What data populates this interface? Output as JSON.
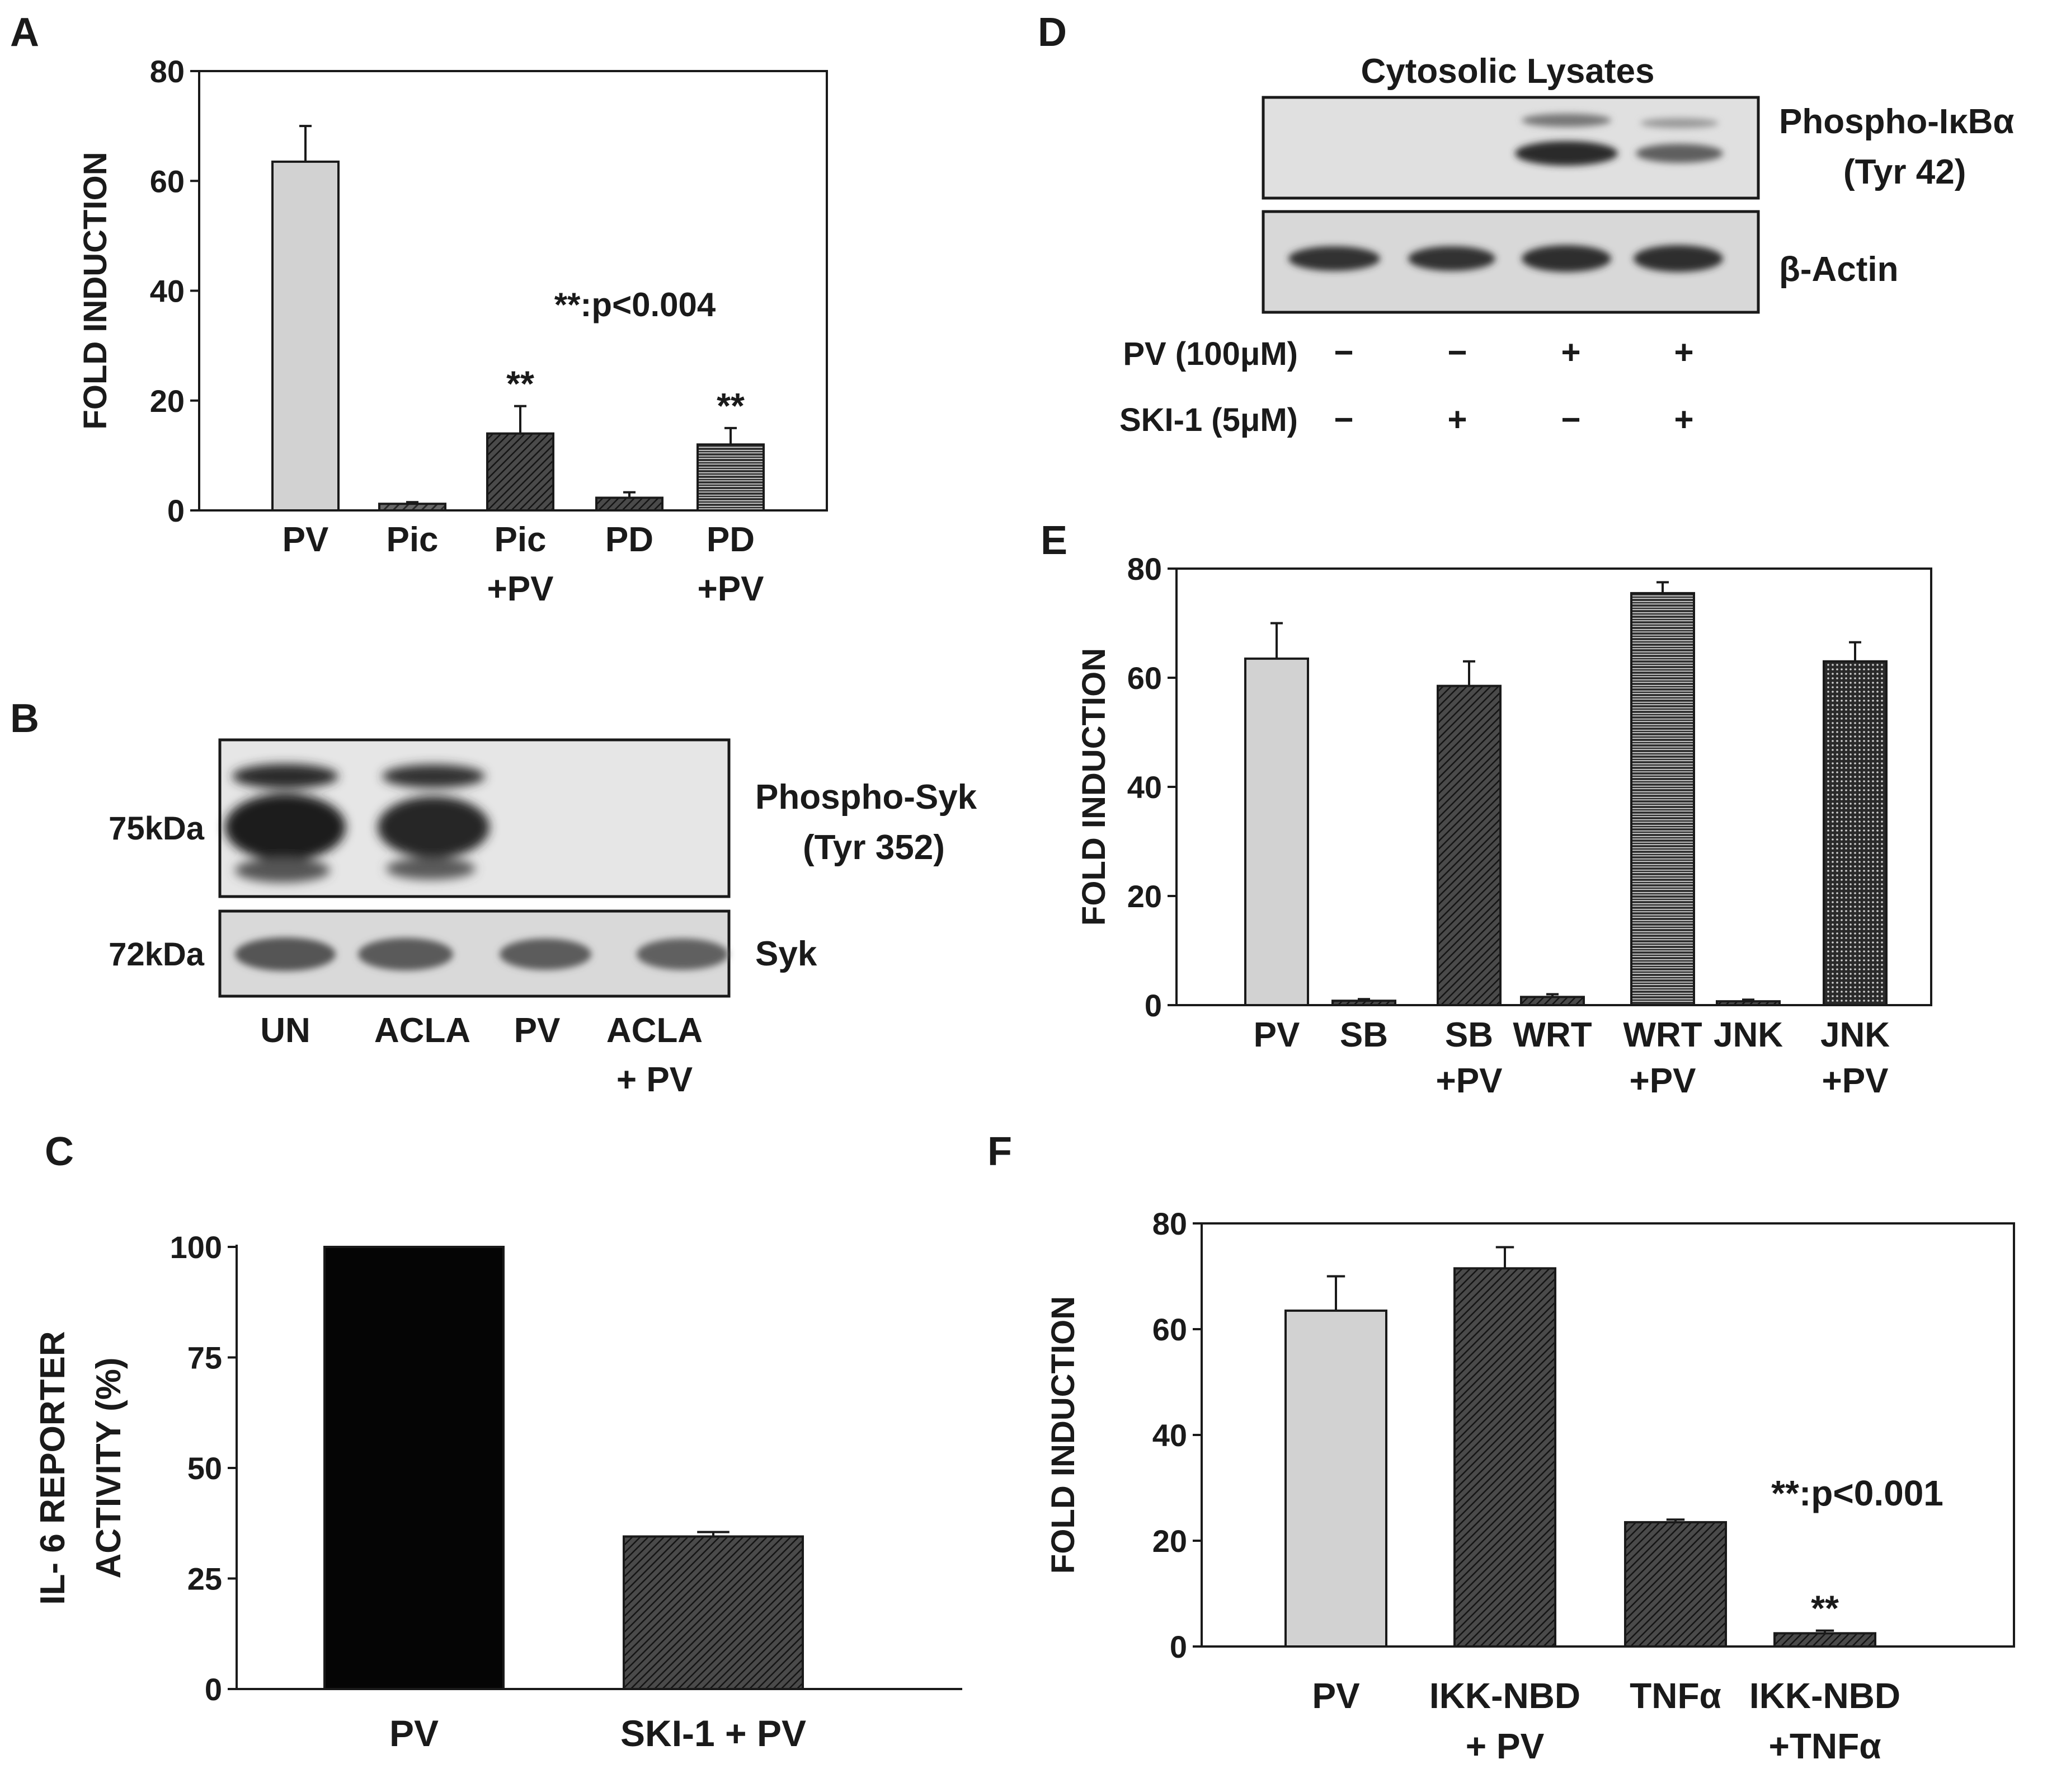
{
  "chart_data": [
    {
      "panel": "A",
      "type": "bar",
      "ylabel": "FOLD INDUCTION",
      "ylim": [
        0,
        80
      ],
      "yticks": [
        "0",
        "20",
        "40",
        "60",
        "80"
      ],
      "categories": [
        [
          "PV"
        ],
        [
          "Pic"
        ],
        [
          "Pic",
          "+PV"
        ],
        [
          "PD"
        ],
        [
          "PD",
          "+PV"
        ]
      ],
      "values": [
        63.5,
        1.2,
        14,
        2.3,
        12
      ],
      "errors": [
        6.5,
        0.3,
        5,
        1,
        3
      ],
      "fills": [
        "light",
        "diag",
        "dark-diag",
        "dark-diag",
        "horiz"
      ],
      "significance": [
        "",
        "",
        "**",
        "",
        "**"
      ],
      "annotation": "**:p<0.004"
    },
    {
      "panel": "C",
      "type": "bar",
      "ylabel": [
        "IL- 6 REPORTER",
        "ACTIVITY (%)"
      ],
      "ylim": [
        0,
        100
      ],
      "yticks": [
        "0",
        "25",
        "50",
        "75",
        "100"
      ],
      "categories": [
        [
          "PV"
        ],
        [
          "SKI-1 + PV"
        ]
      ],
      "values": [
        100,
        34.5
      ],
      "errors": [
        0,
        1
      ],
      "fills": [
        "black",
        "dark-diag"
      ]
    },
    {
      "panel": "E",
      "type": "bar",
      "ylabel": "FOLD INDUCTION",
      "ylim": [
        0,
        80
      ],
      "yticks": [
        "0",
        "20",
        "40",
        "60",
        "80"
      ],
      "categories": [
        [
          "PV"
        ],
        [
          "SB"
        ],
        [
          "SB",
          "+PV"
        ],
        [
          "WRT"
        ],
        [
          "WRT",
          "+PV"
        ],
        [
          "JNK"
        ],
        [
          "JNK",
          "+PV"
        ]
      ],
      "values": [
        63.5,
        0.8,
        58.5,
        1.5,
        75.5,
        0.7,
        63
      ],
      "errors": [
        6.5,
        0.3,
        4.5,
        0.5,
        2,
        0.3,
        3.5
      ],
      "fills": [
        "light",
        "dark-diag",
        "dark-diag",
        "dark-diag",
        "horiz",
        "dark-diag",
        "dots"
      ]
    },
    {
      "panel": "F",
      "type": "bar",
      "ylabel": "FOLD INDUCTION",
      "ylim": [
        0,
        80
      ],
      "yticks": [
        "0",
        "20",
        "40",
        "60",
        "80"
      ],
      "categories": [
        [
          "PV"
        ],
        [
          "IKK-NBD",
          "+ PV"
        ],
        [
          "TNFα"
        ],
        [
          "IKK-NBD",
          "+TNFα"
        ]
      ],
      "values": [
        63.5,
        71.5,
        23.5,
        2.5
      ],
      "errors": [
        6.5,
        4,
        0.5,
        0.5
      ],
      "fills": [
        "light",
        "dark-diag",
        "dark-diag",
        "dark-diag"
      ],
      "significance": [
        "",
        "",
        "",
        "**"
      ],
      "annotation": "**:p<0.001"
    }
  ],
  "panels": {
    "A": "A",
    "B": "B",
    "C": "C",
    "D": "D",
    "E": "E",
    "F": "F"
  },
  "blot_b": {
    "marker_top": "75kDa",
    "marker_bottom": "72kDa",
    "label_top_1": "Phospho-Syk",
    "label_top_2": "(Tyr 352)",
    "label_bottom": "Syk",
    "lanes": [
      [
        "UN"
      ],
      [
        "ACLA"
      ],
      [
        "PV"
      ],
      [
        "ACLA",
        "+ PV"
      ]
    ]
  },
  "blot_d": {
    "title": "Cytosolic Lysates",
    "label_top_1": "Phospho-IκBα",
    "label_top_2": "(Tyr 42)",
    "label_bottom": "β-Actin",
    "row1_label": "PV (100μM)",
    "row1_signs": [
      "−",
      "−",
      "+",
      "+"
    ],
    "row2_label": "SKI-1 (5μM)",
    "row2_signs": [
      "−",
      "+",
      "−",
      "+"
    ]
  }
}
